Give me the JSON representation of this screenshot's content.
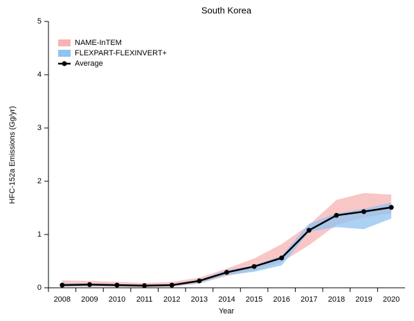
{
  "chart_data": {
    "type": "line",
    "title": "South Korea",
    "x_label": "Year",
    "y_label": "HFC-152a Emissions (Gg/yr)",
    "categories": [
      "2008",
      "2009",
      "2010",
      "2011",
      "2012",
      "2013",
      "2014",
      "2015",
      "2016",
      "2017",
      "2018",
      "2019",
      "2020"
    ],
    "bands": [
      {
        "name": "NAME-InTEM",
        "color": "#f7b3b3",
        "lower": [
          0.02,
          0.02,
          0.02,
          0.01,
          0.02,
          0.08,
          0.22,
          0.32,
          0.48,
          0.8,
          1.18,
          1.32,
          1.4
        ],
        "upper": [
          0.14,
          0.13,
          0.11,
          0.09,
          0.11,
          0.19,
          0.36,
          0.55,
          0.82,
          1.18,
          1.65,
          1.78,
          1.75
        ]
      },
      {
        "name": "FLEXPART-FLEXINVERT+",
        "color": "#8fc3f0",
        "lower": [
          0.03,
          0.03,
          0.03,
          0.02,
          0.03,
          0.09,
          0.24,
          0.3,
          0.42,
          1.05,
          1.14,
          1.1,
          1.3
        ],
        "upper": [
          0.08,
          0.08,
          0.07,
          0.06,
          0.07,
          0.15,
          0.33,
          0.42,
          0.6,
          1.2,
          1.4,
          1.48,
          1.6
        ]
      }
    ],
    "series": [
      {
        "name": "Average",
        "color": "#000000",
        "values": [
          0.05,
          0.06,
          0.05,
          0.04,
          0.05,
          0.13,
          0.29,
          0.4,
          0.56,
          1.08,
          1.36,
          1.43,
          1.51
        ]
      }
    ],
    "ylim": [
      0,
      5
    ],
    "yticks": [
      0,
      1,
      2,
      3,
      4,
      5
    ]
  }
}
